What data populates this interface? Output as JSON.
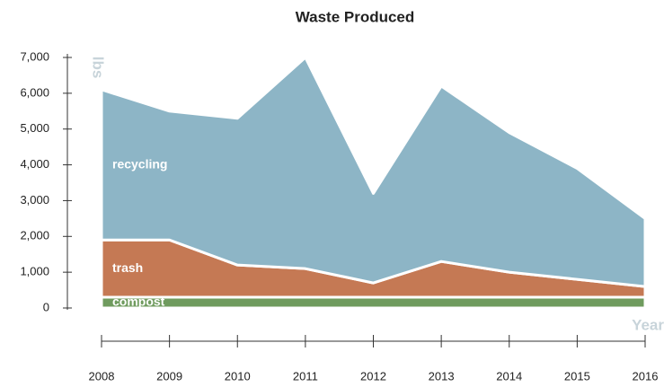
{
  "chart_data": {
    "type": "stacked_area",
    "title": "Waste Produced",
    "y_label": "lbs",
    "x_label": "Year",
    "x": [
      2008,
      2009,
      2010,
      2011,
      2012,
      2013,
      2014,
      2015,
      2016
    ],
    "xlim": [
      2008,
      2016
    ],
    "xticks": [
      2008,
      2009,
      2010,
      2011,
      2012,
      2013,
      2014,
      2015,
      2016
    ],
    "ylim": [
      0,
      7000
    ],
    "yticks": [
      0,
      {
        "value": 1000,
        "label": "1,000"
      },
      {
        "value": 2000,
        "label": "2,000"
      },
      {
        "value": 3000,
        "label": "3,000"
      },
      {
        "value": 4000,
        "label": "4,000"
      },
      {
        "value": 5000,
        "label": "5,000"
      },
      {
        "value": 6000,
        "label": "6,000"
      },
      {
        "value": 7000,
        "label": "7,000"
      }
    ],
    "series": [
      {
        "name": "compost",
        "color": "#6f9b5e",
        "values": [
          300,
          300,
          300,
          300,
          300,
          300,
          300,
          300,
          300
        ]
      },
      {
        "name": "trash",
        "color": "#c57954",
        "values": [
          1600,
          1600,
          900,
          800,
          400,
          1000,
          700,
          500,
          300
        ]
      },
      {
        "name": "recycling",
        "color": "#8db5c6",
        "values": [
          4200,
          3600,
          4100,
          5900,
          2500,
          4900,
          3900,
          3100,
          1900
        ]
      }
    ]
  }
}
